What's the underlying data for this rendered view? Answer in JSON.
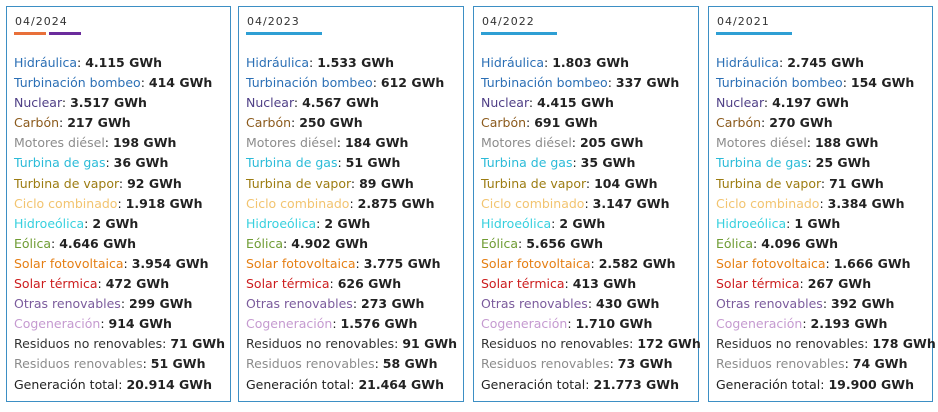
{
  "colors": {
    "hidraulica": "#2b6fb5",
    "bombeo": "#2b6fb5",
    "nuclear": "#4f3f86",
    "carbon": "#8b5a1c",
    "diesel": "#8c8c8c",
    "gas": "#2bbbd8",
    "vapor": "#9c7c12",
    "ciclo": "#f2c470",
    "hidroeolica": "#37d0de",
    "eolica": "#6f9c34",
    "solar_fv": "#e57f14",
    "solar_termica": "#cc1d1d",
    "otras_renovables": "#7b5b9c",
    "cogeneracion": "#c59ad0",
    "residuos_no_renovables": "#333333",
    "residuos_renovables": "#8c8c8c",
    "total": "#222222"
  },
  "cards": [
    {
      "title": "04/2024",
      "bars": [
        {
          "color": "#e8703a"
        },
        {
          "color": "#6b2c9c"
        }
      ],
      "rows": [
        {
          "label": "Hidráulica",
          "value": "4.115 GWh",
          "color_key": "hidraulica"
        },
        {
          "label": "Turbinación bombeo",
          "value": "414 GWh",
          "color_key": "bombeo"
        },
        {
          "label": "Nuclear",
          "value": "3.517 GWh",
          "color_key": "nuclear"
        },
        {
          "label": "Carbón",
          "value": "217 GWh",
          "color_key": "carbon"
        },
        {
          "label": "Motores diésel",
          "value": "198 GWh",
          "color_key": "diesel"
        },
        {
          "label": "Turbina de gas",
          "value": "36 GWh",
          "color_key": "gas"
        },
        {
          "label": "Turbina de vapor",
          "value": "92 GWh",
          "color_key": "vapor"
        },
        {
          "label": "Ciclo combinado",
          "value": "1.918 GWh",
          "color_key": "ciclo"
        },
        {
          "label": "Hidroeólica",
          "value": "2 GWh",
          "color_key": "hidroeolica"
        },
        {
          "label": "Eólica",
          "value": "4.646 GWh",
          "color_key": "eolica"
        },
        {
          "label": "Solar fotovoltaica",
          "value": "3.954 GWh",
          "color_key": "solar_fv"
        },
        {
          "label": "Solar térmica",
          "value": "472 GWh",
          "color_key": "solar_termica"
        },
        {
          "label": "Otras renovables",
          "value": "299 GWh",
          "color_key": "otras_renovables"
        },
        {
          "label": "Cogeneración",
          "value": "914 GWh",
          "color_key": "cogeneracion"
        },
        {
          "label": "Residuos no renovables",
          "value": "71 GWh",
          "color_key": "residuos_no_renovables"
        },
        {
          "label": "Residuos renovables",
          "value": "51 GWh",
          "color_key": "residuos_renovables"
        },
        {
          "label": "Generación total",
          "value": "20.914 GWh",
          "color_key": "total"
        }
      ]
    },
    {
      "title": "04/2023",
      "bars": [
        {
          "color": "#2e9fd4"
        }
      ],
      "rows": [
        {
          "label": "Hidráulica",
          "value": "1.533 GWh",
          "color_key": "hidraulica"
        },
        {
          "label": "Turbinación bombeo",
          "value": "612 GWh",
          "color_key": "bombeo"
        },
        {
          "label": "Nuclear",
          "value": "4.567 GWh",
          "color_key": "nuclear"
        },
        {
          "label": "Carbón",
          "value": "250 GWh",
          "color_key": "carbon"
        },
        {
          "label": "Motores diésel",
          "value": "184 GWh",
          "color_key": "diesel"
        },
        {
          "label": "Turbina de gas",
          "value": "51 GWh",
          "color_key": "gas"
        },
        {
          "label": "Turbina de vapor",
          "value": "89 GWh",
          "color_key": "vapor"
        },
        {
          "label": "Ciclo combinado",
          "value": "2.875 GWh",
          "color_key": "ciclo"
        },
        {
          "label": "Hidroeólica",
          "value": "2 GWh",
          "color_key": "hidroeolica"
        },
        {
          "label": "Eólica",
          "value": "4.902 GWh",
          "color_key": "eolica"
        },
        {
          "label": "Solar fotovoltaica",
          "value": "3.775 GWh",
          "color_key": "solar_fv"
        },
        {
          "label": "Solar térmica",
          "value": "626 GWh",
          "color_key": "solar_termica"
        },
        {
          "label": "Otras renovables",
          "value": "273 GWh",
          "color_key": "otras_renovables"
        },
        {
          "label": "Cogeneración",
          "value": "1.576 GWh",
          "color_key": "cogeneracion"
        },
        {
          "label": "Residuos no renovables",
          "value": "91 GWh",
          "color_key": "residuos_no_renovables"
        },
        {
          "label": "Residuos renovables",
          "value": "58 GWh",
          "color_key": "residuos_renovables"
        },
        {
          "label": "Generación total",
          "value": "21.464 GWh",
          "color_key": "total"
        }
      ]
    },
    {
      "title": "04/2022",
      "bars": [
        {
          "color": "#2e9fd4"
        }
      ],
      "rows": [
        {
          "label": "Hidráulica",
          "value": "1.803 GWh",
          "color_key": "hidraulica"
        },
        {
          "label": "Turbinación bombeo",
          "value": "337 GWh",
          "color_key": "bombeo"
        },
        {
          "label": "Nuclear",
          "value": "4.415 GWh",
          "color_key": "nuclear"
        },
        {
          "label": "Carbón",
          "value": "691 GWh",
          "color_key": "carbon"
        },
        {
          "label": "Motores diésel",
          "value": "205 GWh",
          "color_key": "diesel"
        },
        {
          "label": "Turbina de gas",
          "value": "35 GWh",
          "color_key": "gas"
        },
        {
          "label": "Turbina de vapor",
          "value": "104 GWh",
          "color_key": "vapor"
        },
        {
          "label": "Ciclo combinado",
          "value": "3.147 GWh",
          "color_key": "ciclo"
        },
        {
          "label": "Hidroeólica",
          "value": "2 GWh",
          "color_key": "hidroeolica"
        },
        {
          "label": "Eólica",
          "value": "5.656 GWh",
          "color_key": "eolica"
        },
        {
          "label": "Solar fotovoltaica",
          "value": "2.582 GWh",
          "color_key": "solar_fv"
        },
        {
          "label": "Solar térmica",
          "value": "413 GWh",
          "color_key": "solar_termica"
        },
        {
          "label": "Otras renovables",
          "value": "430 GWh",
          "color_key": "otras_renovables"
        },
        {
          "label": "Cogeneración",
          "value": "1.710 GWh",
          "color_key": "cogeneracion"
        },
        {
          "label": "Residuos no renovables",
          "value": "172 GWh",
          "color_key": "residuos_no_renovables"
        },
        {
          "label": "Residuos renovables",
          "value": "73 GWh",
          "color_key": "residuos_renovables"
        },
        {
          "label": "Generación total",
          "value": "21.773 GWh",
          "color_key": "total"
        }
      ]
    },
    {
      "title": "04/2021",
      "bars": [
        {
          "color": "#2e9fd4"
        }
      ],
      "rows": [
        {
          "label": "Hidráulica",
          "value": "2.745 GWh",
          "color_key": "hidraulica"
        },
        {
          "label": "Turbinación bombeo",
          "value": "154 GWh",
          "color_key": "bombeo"
        },
        {
          "label": "Nuclear",
          "value": "4.197 GWh",
          "color_key": "nuclear"
        },
        {
          "label": "Carbón",
          "value": "270 GWh",
          "color_key": "carbon"
        },
        {
          "label": "Motores diésel",
          "value": "188 GWh",
          "color_key": "diesel"
        },
        {
          "label": "Turbina de gas",
          "value": "25 GWh",
          "color_key": "gas"
        },
        {
          "label": "Turbina de vapor",
          "value": "71 GWh",
          "color_key": "vapor"
        },
        {
          "label": "Ciclo combinado",
          "value": "3.384 GWh",
          "color_key": "ciclo"
        },
        {
          "label": "Hidroeólica",
          "value": "1 GWh",
          "color_key": "hidroeolica"
        },
        {
          "label": "Eólica",
          "value": "4.096 GWh",
          "color_key": "eolica"
        },
        {
          "label": "Solar fotovoltaica",
          "value": "1.666 GWh",
          "color_key": "solar_fv"
        },
        {
          "label": "Solar térmica",
          "value": "267 GWh",
          "color_key": "solar_termica"
        },
        {
          "label": "Otras renovables",
          "value": "392 GWh",
          "color_key": "otras_renovables"
        },
        {
          "label": "Cogeneración",
          "value": "2.193 GWh",
          "color_key": "cogeneracion"
        },
        {
          "label": "Residuos no renovables",
          "value": "178 GWh",
          "color_key": "residuos_no_renovables"
        },
        {
          "label": "Residuos renovables",
          "value": "74 GWh",
          "color_key": "residuos_renovables"
        },
        {
          "label": "Generación total",
          "value": "19.900 GWh",
          "color_key": "total"
        }
      ]
    }
  ]
}
